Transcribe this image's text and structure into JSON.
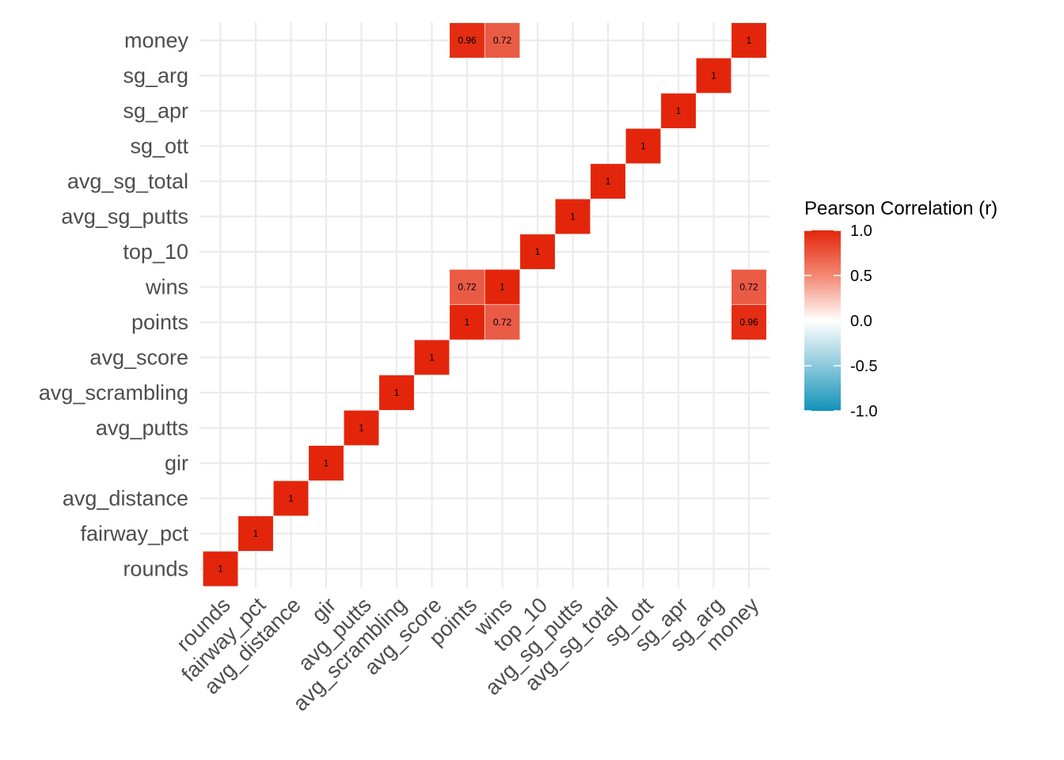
{
  "chart_data": {
    "type": "heatmap",
    "variables": [
      "rounds",
      "fairway_pct",
      "avg_distance",
      "gir",
      "avg_putts",
      "avg_scrambling",
      "avg_score",
      "points",
      "wins",
      "top_10",
      "avg_sg_putts",
      "avg_sg_total",
      "sg_ott",
      "sg_apr",
      "sg_arg",
      "money"
    ],
    "x_categories": [
      "rounds",
      "fairway_pct",
      "avg_distance",
      "gir",
      "avg_putts",
      "avg_scrambling",
      "avg_score",
      "points",
      "wins",
      "top_10",
      "avg_sg_putts",
      "avg_sg_total",
      "sg_ott",
      "sg_apr",
      "sg_arg",
      "money"
    ],
    "y_categories": [
      "rounds",
      "fairway_pct",
      "avg_distance",
      "gir",
      "avg_putts",
      "avg_scrambling",
      "avg_score",
      "points",
      "wins",
      "top_10",
      "avg_sg_putts",
      "avg_sg_total",
      "sg_ott",
      "sg_apr",
      "sg_arg",
      "money"
    ],
    "cells": [
      {
        "x": "rounds",
        "y": "rounds",
        "value": 1,
        "label": "1"
      },
      {
        "x": "fairway_pct",
        "y": "fairway_pct",
        "value": 1,
        "label": "1"
      },
      {
        "x": "avg_distance",
        "y": "avg_distance",
        "value": 1,
        "label": "1"
      },
      {
        "x": "gir",
        "y": "gir",
        "value": 1,
        "label": "1"
      },
      {
        "x": "avg_putts",
        "y": "avg_putts",
        "value": 1,
        "label": "1"
      },
      {
        "x": "avg_scrambling",
        "y": "avg_scrambling",
        "value": 1,
        "label": "1"
      },
      {
        "x": "avg_score",
        "y": "avg_score",
        "value": 1,
        "label": "1"
      },
      {
        "x": "points",
        "y": "points",
        "value": 1,
        "label": "1"
      },
      {
        "x": "wins",
        "y": "points",
        "value": 0.72,
        "label": "0.72"
      },
      {
        "x": "money",
        "y": "points",
        "value": 0.96,
        "label": "0.96"
      },
      {
        "x": "points",
        "y": "wins",
        "value": 0.72,
        "label": "0.72"
      },
      {
        "x": "wins",
        "y": "wins",
        "value": 1,
        "label": "1"
      },
      {
        "x": "money",
        "y": "wins",
        "value": 0.72,
        "label": "0.72"
      },
      {
        "x": "top_10",
        "y": "top_10",
        "value": 1,
        "label": "1"
      },
      {
        "x": "avg_sg_putts",
        "y": "avg_sg_putts",
        "value": 1,
        "label": "1"
      },
      {
        "x": "avg_sg_total",
        "y": "avg_sg_total",
        "value": 1,
        "label": "1"
      },
      {
        "x": "sg_ott",
        "y": "sg_ott",
        "value": 1,
        "label": "1"
      },
      {
        "x": "sg_apr",
        "y": "sg_apr",
        "value": 1,
        "label": "1"
      },
      {
        "x": "sg_arg",
        "y": "sg_arg",
        "value": 1,
        "label": "1"
      },
      {
        "x": "points",
        "y": "money",
        "value": 0.96,
        "label": "0.96"
      },
      {
        "x": "wins",
        "y": "money",
        "value": 0.72,
        "label": "0.72"
      },
      {
        "x": "money",
        "y": "money",
        "value": 1,
        "label": "1"
      }
    ],
    "legend": {
      "title": "Pearson Correlation (r)",
      "ticks": [
        "1.0",
        "0.5",
        "0.0",
        "-0.5",
        "-1.0"
      ],
      "tick_values": [
        1,
        0.5,
        0,
        -0.5,
        -1
      ],
      "range": [
        -1,
        1
      ],
      "placement": "right"
    },
    "colors": {
      "high": "#E3260B",
      "mid": "#FFFFFF",
      "low": "#1192B9",
      "grid": "#EBEBEB",
      "background": "#FFFFFF"
    },
    "grid": true,
    "x_label_rotation_deg": 45
  }
}
